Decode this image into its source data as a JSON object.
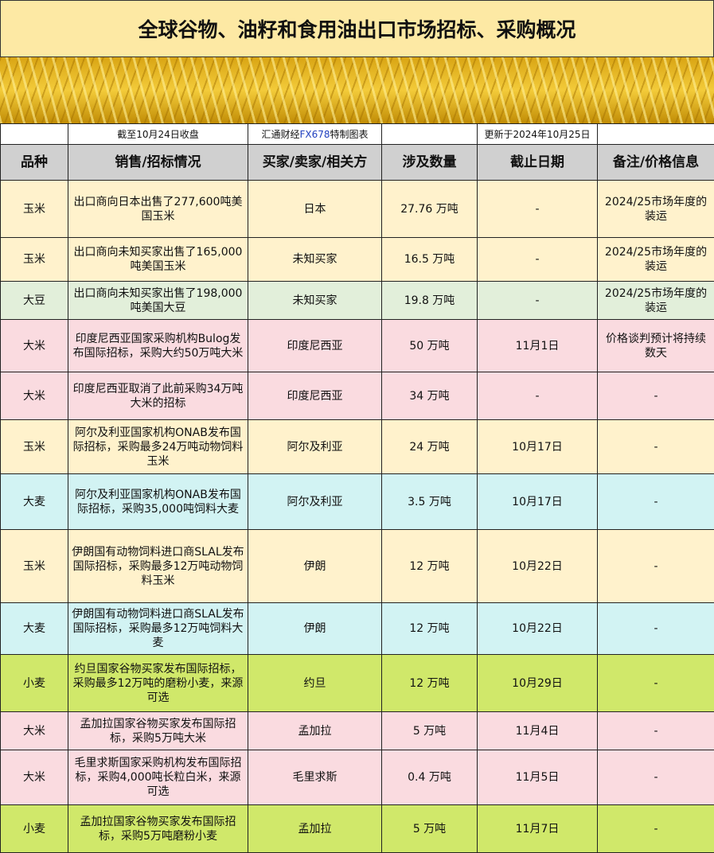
{
  "title": "全球谷物、油籽和食用油出口市场招标、采购概况",
  "meta": {
    "close": "截至10月24日收盘",
    "source_pre": "汇通财经",
    "source_fx": "FX678",
    "source_post": "特制图表",
    "updated": "更新于2024年10月25日"
  },
  "headers": [
    "品种",
    "销售/招标情况",
    "买家/卖家/相关方",
    "涉及数量",
    "截止日期",
    "备注/价格信息"
  ],
  "colors": {
    "yellow": "#fff2cc",
    "green": "#e2efda",
    "pink": "#fadbe0",
    "cyan": "#d2f3f3",
    "lime": "#d0e86a"
  },
  "rows": [
    {
      "c": "yellow",
      "h": 72,
      "cells": [
        "玉米",
        "出口商向日本出售了277,600吨美国玉米",
        "日本",
        "27.76 万吨",
        "-",
        "2024/25市场年度的装运"
      ]
    },
    {
      "c": "yellow",
      "h": 55,
      "cells": [
        "玉米",
        "出口商向未知买家出售了165,000吨美国玉米",
        "未知买家",
        "16.5 万吨",
        "-",
        "2024/25市场年度的装运"
      ]
    },
    {
      "c": "green",
      "h": 48,
      "cells": [
        "大豆",
        "出口商向未知买家出售了198,000吨美国大豆",
        "未知买家",
        "19.8 万吨",
        "-",
        "2024/25市场年度的装运"
      ]
    },
    {
      "c": "pink",
      "h": 66,
      "cells": [
        "大米",
        "印度尼西亚国家采购机构Bulog发布国际招标，采购大约50万吨大米",
        "印度尼西亚",
        "50 万吨",
        "11月1日",
        "价格谈判预计将持续数天"
      ]
    },
    {
      "c": "pink",
      "h": 60,
      "cells": [
        "大米",
        "印度尼西亚取消了此前采购34万吨大米的招标",
        "印度尼西亚",
        "34 万吨",
        "-",
        "-"
      ]
    },
    {
      "c": "yellow",
      "h": 68,
      "cells": [
        "玉米",
        "阿尔及利亚国家机构ONAB发布国际招标，采购最多24万吨动物饲料玉米",
        "阿尔及利亚",
        "24 万吨",
        "10月17日",
        "-"
      ]
    },
    {
      "c": "cyan",
      "h": 70,
      "cells": [
        "大麦",
        "阿尔及利亚国家机构ONAB发布国际招标，采购35,000吨饲料大麦",
        "阿尔及利亚",
        "3.5 万吨",
        "10月17日",
        "-"
      ]
    },
    {
      "c": "yellow",
      "h": 92,
      "cells": [
        "玉米",
        "伊朗国有动物饲料进口商SLAL发布国际招标，采购最多12万吨动物饲料玉米",
        "伊朗",
        "12 万吨",
        "10月22日",
        "-"
      ]
    },
    {
      "c": "cyan",
      "h": 65,
      "cells": [
        "大麦",
        "伊朗国有动物饲料进口商SLAL发布国际招标，采购最多12万吨饲料大麦",
        "伊朗",
        "12 万吨",
        "10月22日",
        "-"
      ]
    },
    {
      "c": "lime",
      "h": 72,
      "cells": [
        "小麦",
        "约旦国家谷物买家发布国际招标，采购最多12万吨的磨粉小麦，来源可选",
        "约旦",
        "12 万吨",
        "10月29日",
        "-"
      ]
    },
    {
      "c": "pink",
      "h": 48,
      "cells": [
        "大米",
        "孟加拉国家谷物买家发布国际招标，采购5万吨大米",
        "孟加拉",
        "5 万吨",
        "11月4日",
        "-"
      ]
    },
    {
      "c": "pink",
      "h": 69,
      "cells": [
        "大米",
        "毛里求斯国家采购机构发布国际招标，采购4,000吨长粒白米，来源可选",
        "毛里求斯",
        "0.4 万吨",
        "11月5日",
        "-"
      ]
    },
    {
      "c": "lime",
      "h": 60,
      "cells": [
        "小麦",
        "孟加拉国家谷物买家发布国际招标，采购5万吨磨粉小麦",
        "孟加拉",
        "5 万吨",
        "11月7日",
        "-"
      ]
    }
  ]
}
